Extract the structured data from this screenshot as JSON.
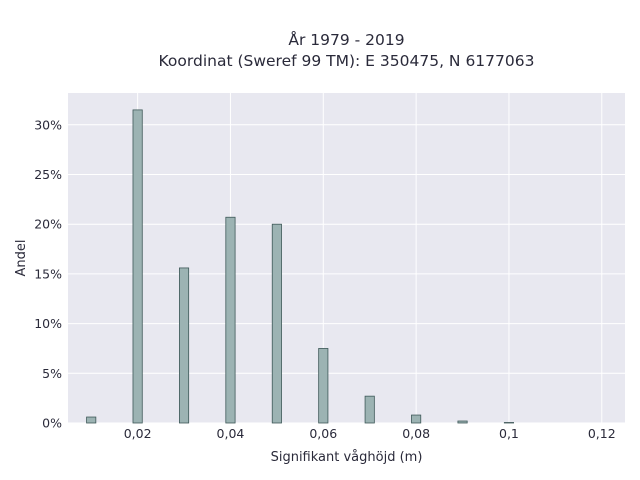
{
  "chart_data": {
    "type": "bar",
    "title_lines": [
      "År 1979 - 2019",
      "Koordinat (Sweref 99 TM): E 350475, N 6177063"
    ],
    "xlabel": "Signifikant våghöjd (m)",
    "ylabel": "Andel",
    "xlim": [
      0.005,
      0.125
    ],
    "ylim": [
      0,
      0.332
    ],
    "x_ticks": [
      0.02,
      0.04,
      0.06,
      0.08,
      0.1,
      0.12
    ],
    "x_tick_labels": [
      "0,02",
      "0,04",
      "0,06",
      "0,08",
      "0,1",
      "0,12"
    ],
    "y_ticks": [
      0,
      0.05,
      0.1,
      0.15,
      0.2,
      0.25,
      0.3
    ],
    "y_tick_labels": [
      "0%",
      "5%",
      "10%",
      "15%",
      "20%",
      "25%",
      "30%"
    ],
    "x": [
      0.01,
      0.02,
      0.03,
      0.04,
      0.05,
      0.06,
      0.07,
      0.08,
      0.09,
      0.1
    ],
    "values": [
      0.006,
      0.315,
      0.156,
      0.207,
      0.2,
      0.075,
      0.027,
      0.008,
      0.002,
      0.0005
    ],
    "bar_width": 0.002,
    "grid": true,
    "colors": {
      "plot_background": "#e8e8f0",
      "bar_fill": "#9cb3b3",
      "bar_edge": "#3e5858",
      "grid": "#ffffff"
    }
  }
}
